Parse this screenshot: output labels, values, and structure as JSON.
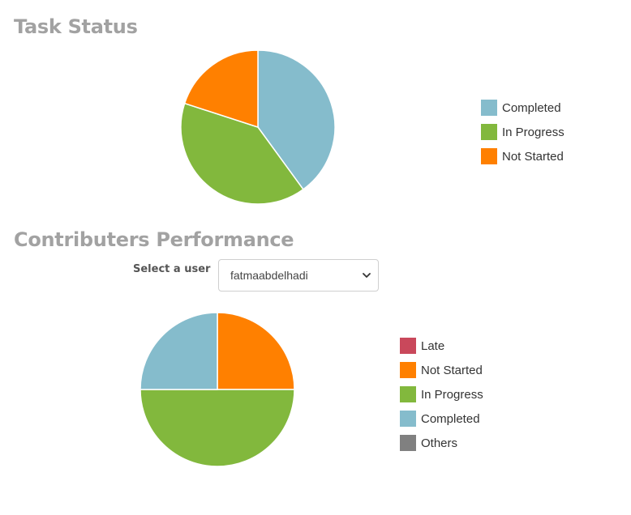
{
  "task_status": {
    "title": "Task Status"
  },
  "contributors": {
    "title": "Contributers Performance",
    "select_label": "Select a user",
    "selected_user": "fatmaabdelhadi"
  },
  "chart_data": [
    {
      "type": "pie",
      "title": "Task Status",
      "legend_position": "right",
      "slices": [
        {
          "label": "Completed",
          "value": 40,
          "color": "#85bccc"
        },
        {
          "label": "In Progress",
          "value": 40,
          "color": "#82b83d"
        },
        {
          "label": "Not Started",
          "value": 20,
          "color": "#ff8000"
        }
      ]
    },
    {
      "type": "pie",
      "title": "Contributers Performance",
      "legend_position": "right",
      "slices": [
        {
          "label": "Late",
          "value": 0,
          "color": "#c9485b"
        },
        {
          "label": "Not Started",
          "value": 25,
          "color": "#ff8000"
        },
        {
          "label": "In Progress",
          "value": 50,
          "color": "#82b83d"
        },
        {
          "label": "Completed",
          "value": 25,
          "color": "#85bccc"
        },
        {
          "label": "Others",
          "value": 0,
          "color": "#808080"
        }
      ]
    }
  ]
}
